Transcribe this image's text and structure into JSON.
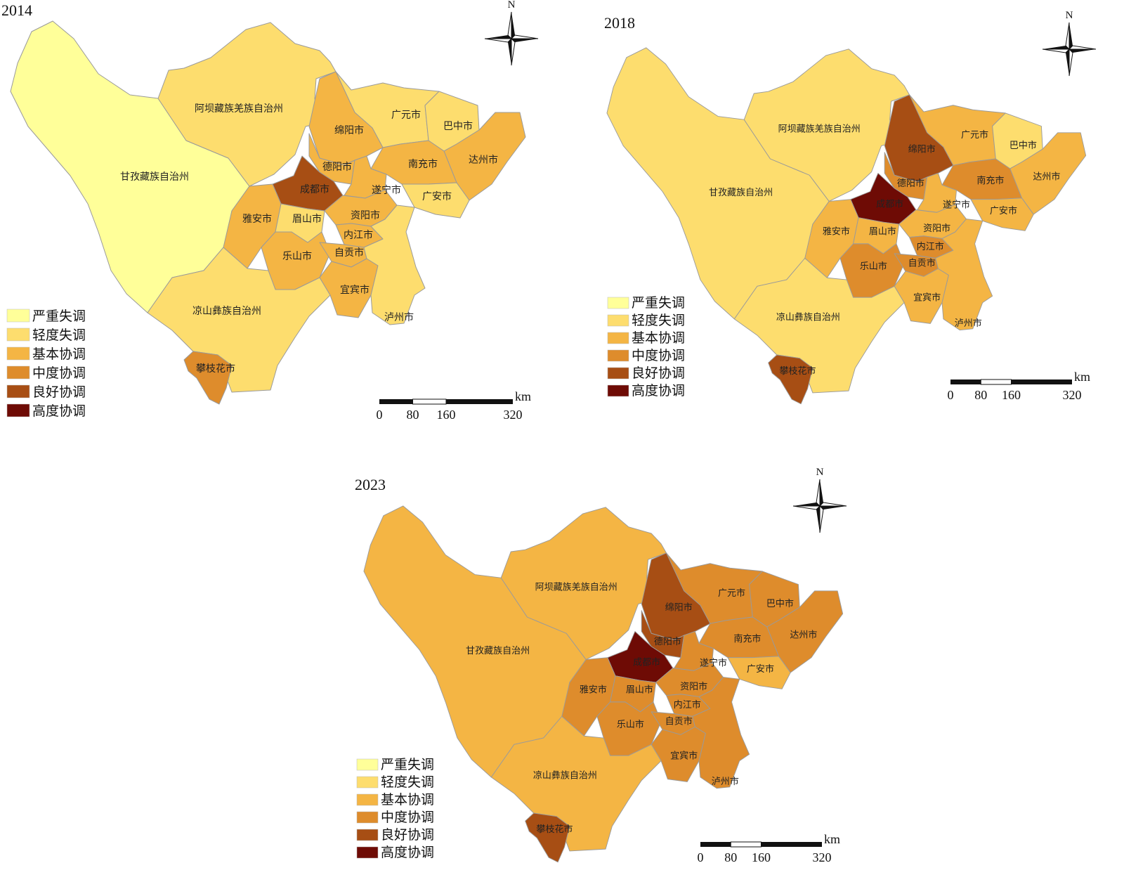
{
  "legend": {
    "classes": [
      {
        "label": "严重失调",
        "color": "#FFFF99"
      },
      {
        "label": "轻度失调",
        "color": "#FDDD6E"
      },
      {
        "label": "基本协调",
        "color": "#F4B544"
      },
      {
        "label": "中度协调",
        "color": "#DE8C2C"
      },
      {
        "label": "良好协调",
        "color": "#A74E14"
      },
      {
        "label": "高度协调",
        "color": "#6E0B05"
      }
    ]
  },
  "north_label": "N",
  "scale_bar": {
    "unit": "km",
    "ticks": [
      "0",
      "80",
      "160",
      "320"
    ]
  },
  "region_names": {
    "ganzi": "甘孜藏族自治州",
    "aba": "阿坝藏族羌族自治州",
    "liangshan": "凉山彝族自治州",
    "guangyuan": "广元市",
    "bazhong": "巴中市",
    "mianyang": "绵阳市",
    "nanchong": "南充市",
    "dazhou": "达州市",
    "deyang": "德阳市",
    "chengdu": "成都市",
    "suining": "遂宁市",
    "guangan": "广安市",
    "yaan": "雅安市",
    "meishan": "眉山市",
    "ziyang": "资阳市",
    "neijiang": "内江市",
    "leshan": "乐山市",
    "zigong": "自贡市",
    "yibin": "宜宾市",
    "luzhou": "泸州市",
    "panzhihua": "攀枝花市"
  },
  "maps": [
    {
      "year": "2014",
      "levels": {
        "ganzi": "严重失调",
        "aba": "轻度失调",
        "liangshan": "轻度失调",
        "guangyuan": "轻度失调",
        "bazhong": "轻度失调",
        "mianyang": "基本协调",
        "nanchong": "基本协调",
        "dazhou": "基本协调",
        "deyang": "基本协调",
        "chengdu": "良好协调",
        "suining": "基本协调",
        "guangan": "轻度失调",
        "yaan": "基本协调",
        "meishan": "轻度失调",
        "ziyang": "基本协调",
        "neijiang": "基本协调",
        "leshan": "基本协调",
        "zigong": "基本协调",
        "yibin": "基本协调",
        "luzhou": "轻度失调",
        "panzhihua": "中度协调"
      }
    },
    {
      "year": "2018",
      "levels": {
        "ganzi": "轻度失调",
        "aba": "轻度失调",
        "liangshan": "轻度失调",
        "guangyuan": "基本协调",
        "bazhong": "轻度失调",
        "mianyang": "良好协调",
        "nanchong": "中度协调",
        "dazhou": "基本协调",
        "deyang": "中度协调",
        "chengdu": "高度协调",
        "suining": "基本协调",
        "guangan": "基本协调",
        "yaan": "基本协调",
        "meishan": "基本协调",
        "ziyang": "基本协调",
        "neijiang": "中度协调",
        "leshan": "中度协调",
        "zigong": "中度协调",
        "yibin": "基本协调",
        "luzhou": "基本协调",
        "panzhihua": "良好协调"
      }
    },
    {
      "year": "2023",
      "levels": {
        "ganzi": "基本协调",
        "aba": "基本协调",
        "liangshan": "基本协调",
        "guangyuan": "中度协调",
        "bazhong": "中度协调",
        "mianyang": "良好协调",
        "nanchong": "中度协调",
        "dazhou": "中度协调",
        "deyang": "良好协调",
        "chengdu": "高度协调",
        "suining": "中度协调",
        "guangan": "基本协调",
        "yaan": "中度协调",
        "meishan": "中度协调",
        "ziyang": "中度协调",
        "neijiang": "中度协调",
        "leshan": "中度协调",
        "zigong": "中度协调",
        "yibin": "中度协调",
        "luzhou": "中度协调",
        "panzhihua": "良好协调"
      }
    }
  ]
}
